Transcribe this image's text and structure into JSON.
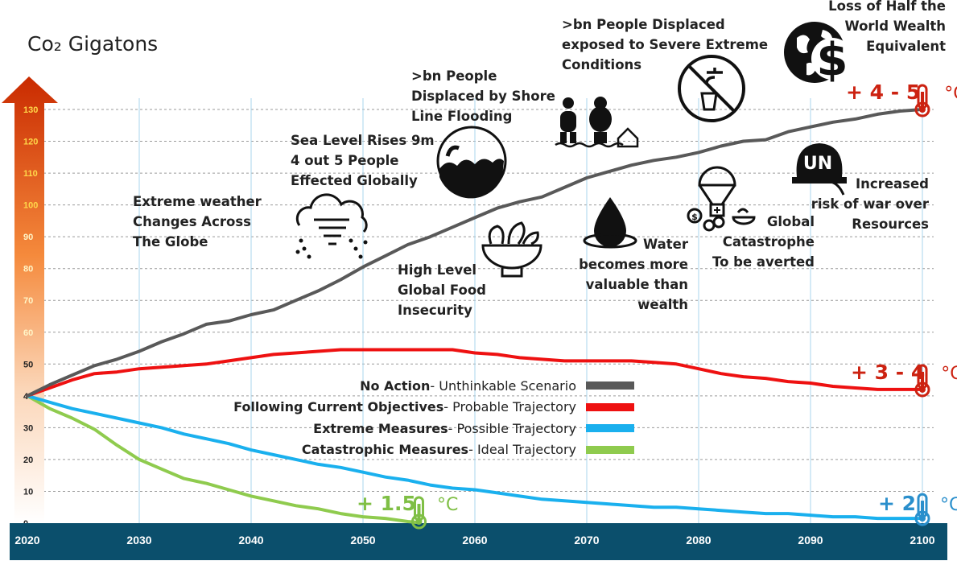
{
  "chart_data": {
    "type": "line",
    "title": "Co₂ Gigatons",
    "xlim": [
      2020,
      2100
    ],
    "ylim": [
      0,
      130
    ],
    "x_ticks": [
      "2020",
      "2030",
      "2040",
      "2050",
      "2060",
      "2070",
      "2080",
      "2090",
      "2100"
    ],
    "y_ticks": [
      "0",
      "10",
      "20",
      "30",
      "40",
      "50",
      "60",
      "70",
      "80",
      "90",
      "100",
      "110",
      "120",
      "130"
    ],
    "grid": true,
    "series": [
      {
        "bold": "No Action",
        "rest": " - Unthinkable Scenario",
        "color": "#595959",
        "x": [
          2020,
          2022,
          2024,
          2026,
          2028,
          2030,
          2032,
          2034,
          2036,
          2038,
          2040,
          2042,
          2044,
          2046,
          2048,
          2050,
          2052,
          2054,
          2056,
          2058,
          2060,
          2062,
          2064,
          2066,
          2068,
          2070,
          2072,
          2074,
          2076,
          2078,
          2080,
          2082,
          2084,
          2086,
          2088,
          2090,
          2092,
          2094,
          2096,
          2098,
          2100
        ],
        "y": [
          40,
          43.5,
          46.5,
          49.5,
          51.5,
          54,
          57,
          59.5,
          62.5,
          63.5,
          65.5,
          67,
          70,
          73,
          76.5,
          80.5,
          84,
          87.5,
          90,
          93,
          96,
          99,
          101,
          102.5,
          105.5,
          108.5,
          110.5,
          112.5,
          114,
          115,
          116.5,
          118.5,
          120,
          120.5,
          123,
          124.5,
          126,
          127,
          128.5,
          129.5,
          130
        ]
      },
      {
        "bold": "Following Current Objectives",
        "rest": " - Probable Trajectory",
        "color": "#ee1111",
        "x": [
          2020,
          2022,
          2024,
          2026,
          2028,
          2030,
          2032,
          2034,
          2036,
          2038,
          2040,
          2042,
          2044,
          2046,
          2048,
          2050,
          2052,
          2054,
          2056,
          2058,
          2060,
          2062,
          2064,
          2066,
          2068,
          2070,
          2072,
          2074,
          2076,
          2078,
          2080,
          2082,
          2084,
          2086,
          2088,
          2090,
          2092,
          2094,
          2096,
          2098,
          2100
        ],
        "y": [
          40,
          42.5,
          45,
          47,
          47.5,
          48.5,
          49,
          49.5,
          50,
          51,
          52,
          53,
          53.5,
          54,
          54.5,
          54.5,
          54.5,
          54.5,
          54.5,
          54.5,
          53.5,
          53,
          52,
          51.5,
          51,
          51,
          51,
          51,
          50.5,
          50,
          48.5,
          47,
          46,
          45.5,
          44.5,
          44,
          43,
          42.5,
          42,
          42,
          42
        ]
      },
      {
        "bold": "Extreme Measures",
        "rest": " - Possible Trajectory",
        "color": "#1ab0ee",
        "x": [
          2020,
          2022,
          2024,
          2026,
          2028,
          2030,
          2032,
          2034,
          2036,
          2038,
          2040,
          2042,
          2044,
          2046,
          2048,
          2050,
          2052,
          2054,
          2056,
          2058,
          2060,
          2062,
          2064,
          2066,
          2068,
          2070,
          2072,
          2074,
          2076,
          2078,
          2080,
          2082,
          2084,
          2086,
          2088,
          2090,
          2092,
          2094,
          2096,
          2098,
          2100
        ],
        "y": [
          40,
          38,
          36,
          34.5,
          33,
          31.5,
          30,
          28,
          26.5,
          25,
          23,
          21.5,
          20,
          18.5,
          17.5,
          16,
          14.5,
          13.5,
          12,
          11,
          10.5,
          9.5,
          8.5,
          7.5,
          7,
          6.5,
          6,
          5.5,
          5,
          5,
          4.5,
          4,
          3.5,
          3,
          3,
          2.5,
          2,
          2,
          1.5,
          1.5,
          1.5
        ]
      },
      {
        "bold": "Catastrophic Measures",
        "rest": " - Ideal Trajectory",
        "color": "#8fcb4e",
        "x": [
          2020,
          2022,
          2024,
          2026,
          2028,
          2030,
          2032,
          2034,
          2036,
          2038,
          2040,
          2042,
          2044,
          2046,
          2048,
          2050,
          2052,
          2054,
          2055
        ],
        "y": [
          40,
          36,
          33,
          29.5,
          24.5,
          20,
          17,
          14,
          12.5,
          10.5,
          8.5,
          7,
          5.5,
          4.5,
          3,
          2,
          1.5,
          0.5,
          0.2
        ]
      }
    ],
    "temperature_markers": [
      {
        "text": "+ 4 - 5",
        "unit": "°C",
        "color": "#cc2211",
        "x": 2100,
        "y": 130
      },
      {
        "text": "+ 3 - 4",
        "unit": "°C",
        "color": "#cc2211",
        "x": 2100,
        "y": 42
      },
      {
        "text": "+ 2",
        "unit": "°C",
        "color": "#2a8fcc",
        "x": 2100,
        "y": 1.5
      },
      {
        "text": "+ 1.5",
        "unit": "°C",
        "color": "#7fbf45",
        "x": 2055,
        "y": 0.5
      }
    ],
    "annotations": [
      {
        "text": "Extreme weather\nChanges Across\nThe Globe",
        "icon": "storm-cloud-icon"
      },
      {
        "text": "Sea Level Rises 9m\n4 out 5 People\nEffected Globally",
        "icon": ""
      },
      {
        "text": ">bn People\nDisplaced by Shore\nLine Flooding",
        "icon": "flood-wave-icon"
      },
      {
        "text": "High Level\nGlobal Food\nInsecurity",
        "icon": "food-bowl-icon"
      },
      {
        "text": ">bn People Displaced\nexposed to Severe Extreme\nConditions",
        "icon": "displaced-people-icon"
      },
      {
        "text": "Water\nbecomes more\nvaluable than\nwealth",
        "icon": "water-drop-icon"
      },
      {
        "text": "Global\nCatastrophe\nTo be averted",
        "icon": "aid-parachute-icon"
      },
      {
        "text": "Loss of Half the\nWorld Wealth\nEquivalent",
        "icon": "globe-dollar-icon"
      },
      {
        "text": "Increased\nrisk of war over\nResources",
        "icon": "un-helmet-icon"
      }
    ],
    "icon_labels": {
      "un_helmet": "UN",
      "dollar": "$",
      "coin": "$"
    }
  }
}
